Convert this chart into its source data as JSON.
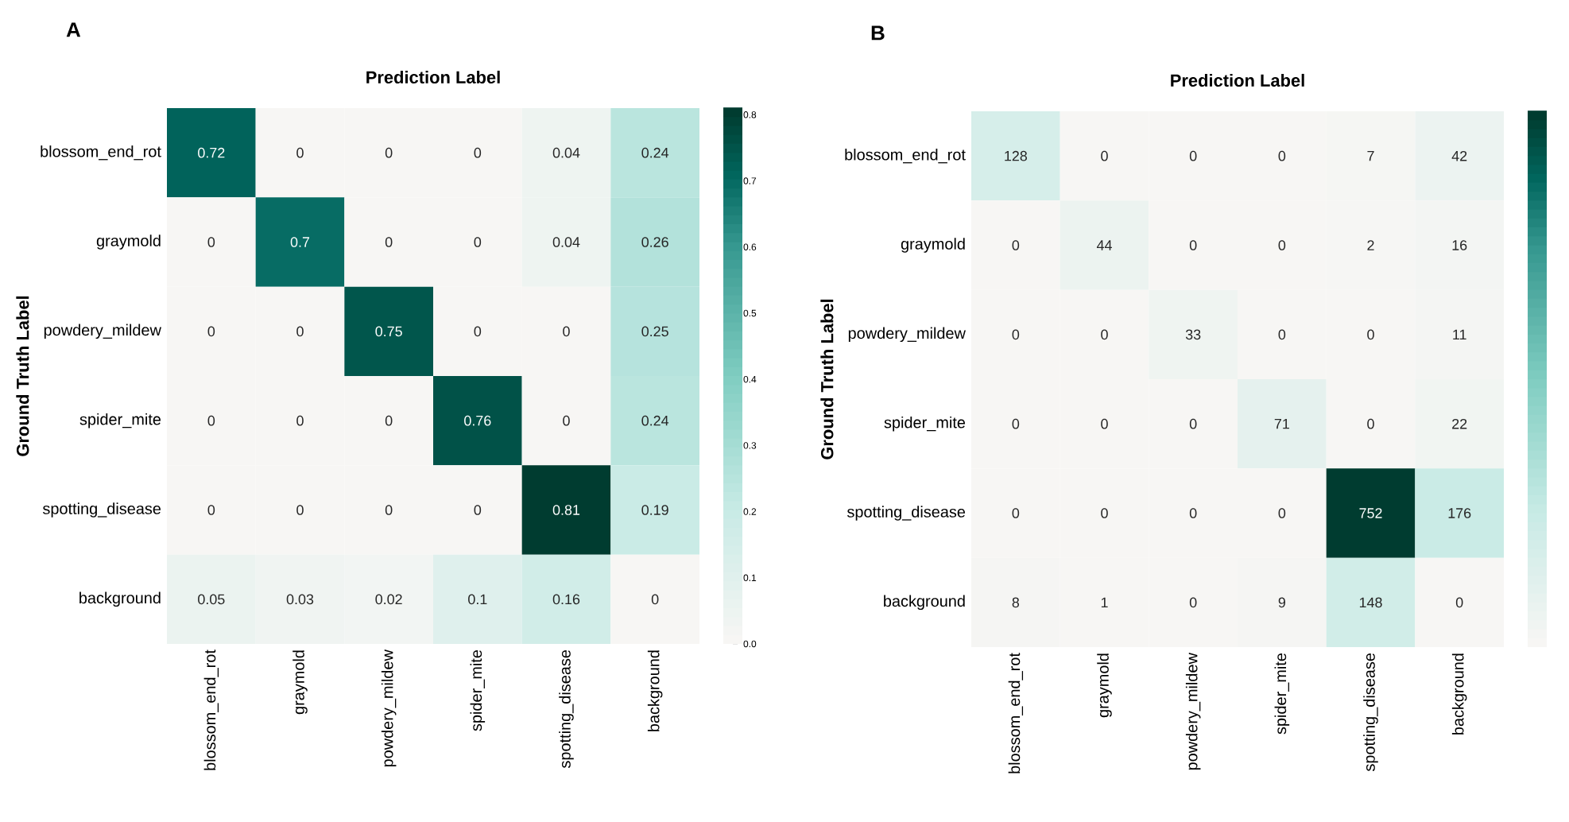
{
  "chart_data": [
    {
      "type": "heatmap",
      "title": "Prediction Label",
      "ylabel": "Ground Truth Label",
      "annotations": [
        "A"
      ],
      "categories": [
        "blossom_end_rot",
        "graymold",
        "powdery_mildew",
        "spider_mite",
        "spotting_disease",
        "background"
      ],
      "y_categories": [
        "blossom_end_rot",
        "graymold",
        "powdery_mildew",
        "spider_mite",
        "spotting_disease",
        "background"
      ],
      "cells": [
        [
          0.72,
          0,
          0,
          0,
          0.04,
          0.24
        ],
        [
          0,
          0.7,
          0,
          0,
          0.04,
          0.26
        ],
        [
          0,
          0,
          0.75,
          0,
          0,
          0.25
        ],
        [
          0,
          0,
          0,
          0.76,
          0,
          0.24
        ],
        [
          0,
          0,
          0,
          0,
          0.81,
          0.19
        ],
        [
          0.05,
          0.03,
          0.02,
          0.1,
          0.16,
          0
        ]
      ],
      "data_labels": true,
      "clim": [
        0,
        0.81
      ],
      "cticks": [
        {
          "value": 0,
          "label": "0.0"
        },
        {
          "value": 0.1,
          "label": "0.1"
        },
        {
          "value": 0.2,
          "label": "0.2"
        },
        {
          "value": 0.3,
          "label": "0.3"
        },
        {
          "value": 0.4,
          "label": "0.4"
        },
        {
          "value": 0.5,
          "label": "0.5"
        },
        {
          "value": 0.6,
          "label": "0.6"
        },
        {
          "value": 0.7,
          "label": "0.7"
        },
        {
          "value": 0.8,
          "label": "0.8"
        }
      ]
    },
    {
      "type": "heatmap",
      "title": "Prediction Label",
      "ylabel": "Ground Truth Label",
      "annotations": [
        "B"
      ],
      "categories": [
        "blossom_end_rot",
        "graymold",
        "powdery_mildew",
        "spider_mite",
        "spotting_disease",
        "background"
      ],
      "y_categories": [
        "blossom_end_rot",
        "graymold",
        "powdery_mildew",
        "spider_mite",
        "spotting_disease",
        "background"
      ],
      "cells": [
        [
          128,
          0,
          0,
          0,
          7,
          42
        ],
        [
          0,
          44,
          0,
          0,
          2,
          16
        ],
        [
          0,
          0,
          33,
          0,
          0,
          11
        ],
        [
          0,
          0,
          0,
          71,
          0,
          22
        ],
        [
          0,
          0,
          0,
          0,
          752,
          176
        ],
        [
          8,
          1,
          0,
          9,
          148,
          0
        ]
      ],
      "data_labels": true
    }
  ]
}
